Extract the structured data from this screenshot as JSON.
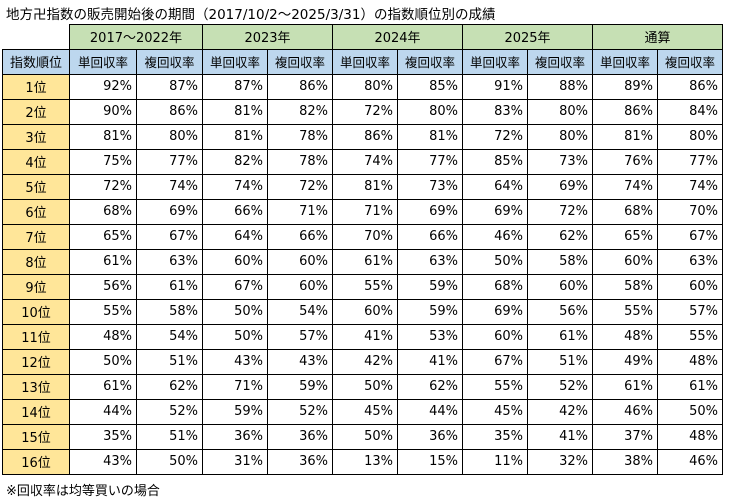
{
  "title": "地方卍指数の販売開始後の期間（2017/10/2〜2025/3/31）の指数順位別の成績",
  "rank_header": "指数順位",
  "sub_headers": [
    "単回収率",
    "複回収率"
  ],
  "periods": [
    "2017〜2022年",
    "2023年",
    "2024年",
    "2025年",
    "通算"
  ],
  "rows": [
    {
      "rank": "1位",
      "values": [
        "92%",
        "87%",
        "87%",
        "86%",
        "80%",
        "85%",
        "91%",
        "88%",
        "89%",
        "86%"
      ]
    },
    {
      "rank": "2位",
      "values": [
        "90%",
        "86%",
        "81%",
        "82%",
        "72%",
        "80%",
        "83%",
        "80%",
        "86%",
        "84%"
      ]
    },
    {
      "rank": "3位",
      "values": [
        "81%",
        "80%",
        "81%",
        "78%",
        "86%",
        "81%",
        "72%",
        "80%",
        "81%",
        "80%"
      ]
    },
    {
      "rank": "4位",
      "values": [
        "75%",
        "77%",
        "82%",
        "78%",
        "74%",
        "77%",
        "85%",
        "73%",
        "76%",
        "77%"
      ]
    },
    {
      "rank": "5位",
      "values": [
        "72%",
        "74%",
        "74%",
        "72%",
        "81%",
        "73%",
        "64%",
        "69%",
        "74%",
        "74%"
      ]
    },
    {
      "rank": "6位",
      "values": [
        "68%",
        "69%",
        "66%",
        "71%",
        "71%",
        "69%",
        "69%",
        "72%",
        "68%",
        "70%"
      ]
    },
    {
      "rank": "7位",
      "values": [
        "65%",
        "67%",
        "64%",
        "66%",
        "70%",
        "66%",
        "46%",
        "62%",
        "65%",
        "67%"
      ]
    },
    {
      "rank": "8位",
      "values": [
        "61%",
        "63%",
        "60%",
        "60%",
        "61%",
        "63%",
        "50%",
        "58%",
        "60%",
        "63%"
      ]
    },
    {
      "rank": "9位",
      "values": [
        "56%",
        "61%",
        "67%",
        "60%",
        "55%",
        "59%",
        "68%",
        "60%",
        "58%",
        "60%"
      ]
    },
    {
      "rank": "10位",
      "values": [
        "55%",
        "58%",
        "50%",
        "54%",
        "60%",
        "59%",
        "69%",
        "56%",
        "55%",
        "57%"
      ]
    },
    {
      "rank": "11位",
      "values": [
        "48%",
        "54%",
        "50%",
        "57%",
        "41%",
        "53%",
        "60%",
        "61%",
        "48%",
        "55%"
      ]
    },
    {
      "rank": "12位",
      "values": [
        "50%",
        "51%",
        "43%",
        "43%",
        "42%",
        "41%",
        "67%",
        "51%",
        "49%",
        "48%"
      ]
    },
    {
      "rank": "13位",
      "values": [
        "61%",
        "62%",
        "71%",
        "59%",
        "50%",
        "62%",
        "55%",
        "52%",
        "61%",
        "61%"
      ]
    },
    {
      "rank": "14位",
      "values": [
        "44%",
        "52%",
        "59%",
        "52%",
        "45%",
        "44%",
        "45%",
        "42%",
        "46%",
        "50%"
      ]
    },
    {
      "rank": "15位",
      "values": [
        "35%",
        "51%",
        "36%",
        "36%",
        "50%",
        "36%",
        "35%",
        "41%",
        "37%",
        "48%"
      ]
    },
    {
      "rank": "16位",
      "values": [
        "43%",
        "50%",
        "31%",
        "36%",
        "13%",
        "15%",
        "11%",
        "32%",
        "38%",
        "46%"
      ]
    }
  ],
  "note": "※回収率は均等買いの場合"
}
